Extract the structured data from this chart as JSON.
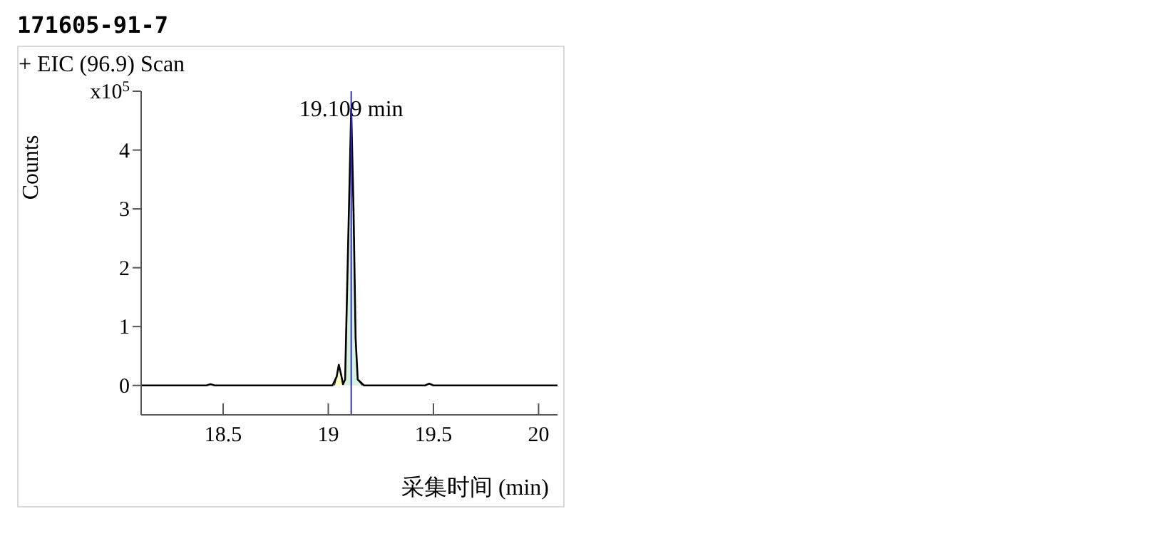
{
  "chart_data": {
    "type": "line",
    "title": "171605-91-7",
    "subtitle": "+ EIC (96.9) Scan",
    "xlabel": "采集时间 (min)",
    "ylabel": "Counts",
    "xlim": [
      18.11,
      20.09
    ],
    "xticks": [
      18.5,
      19,
      19.5,
      20
    ],
    "ylim": [
      -0.5,
      5
    ],
    "yticks": [
      0,
      1,
      2,
      3,
      4,
      {
        "value": 5,
        "label": "x10$^{5}$"
      }
    ],
    "marker": "none",
    "series": [
      {
        "type": "area",
        "color": "#ffffc0",
        "x": [
          19.03,
          19.04,
          19.05,
          19.06,
          19.07
        ],
        "values": [
          0,
          0.15,
          0.35,
          0.2,
          0.02
        ]
      },
      {
        "type": "area",
        "color": "#d8f2e0",
        "x": [
          19.07,
          19.08,
          19.095,
          19.109,
          19.12,
          19.13,
          19.14,
          19.16
        ],
        "values": [
          0.02,
          0.1,
          2.5,
          4.7,
          3,
          0.8,
          0.1,
          0
        ]
      },
      {
        "type": "line",
        "color": "#000000",
        "x": [
          18.11,
          18.42,
          18.44,
          18.46,
          19.02,
          19.04,
          19.05,
          19.06,
          19.07,
          19.08,
          19.095,
          19.109,
          19.12,
          19.13,
          19.14,
          19.17,
          19.46,
          19.48,
          19.5,
          20.09
        ],
        "values": [
          0,
          0,
          0.02,
          0,
          0,
          0.15,
          0.35,
          0.2,
          0.02,
          0.1,
          2.5,
          4.7,
          3,
          0.8,
          0.1,
          0,
          0,
          0.03,
          0,
          0
        ]
      }
    ],
    "ref_lines": [
      {
        "axis": "x",
        "value": 19.109,
        "label": "19.109 min",
        "color": "#3030c0"
      }
    ]
  }
}
